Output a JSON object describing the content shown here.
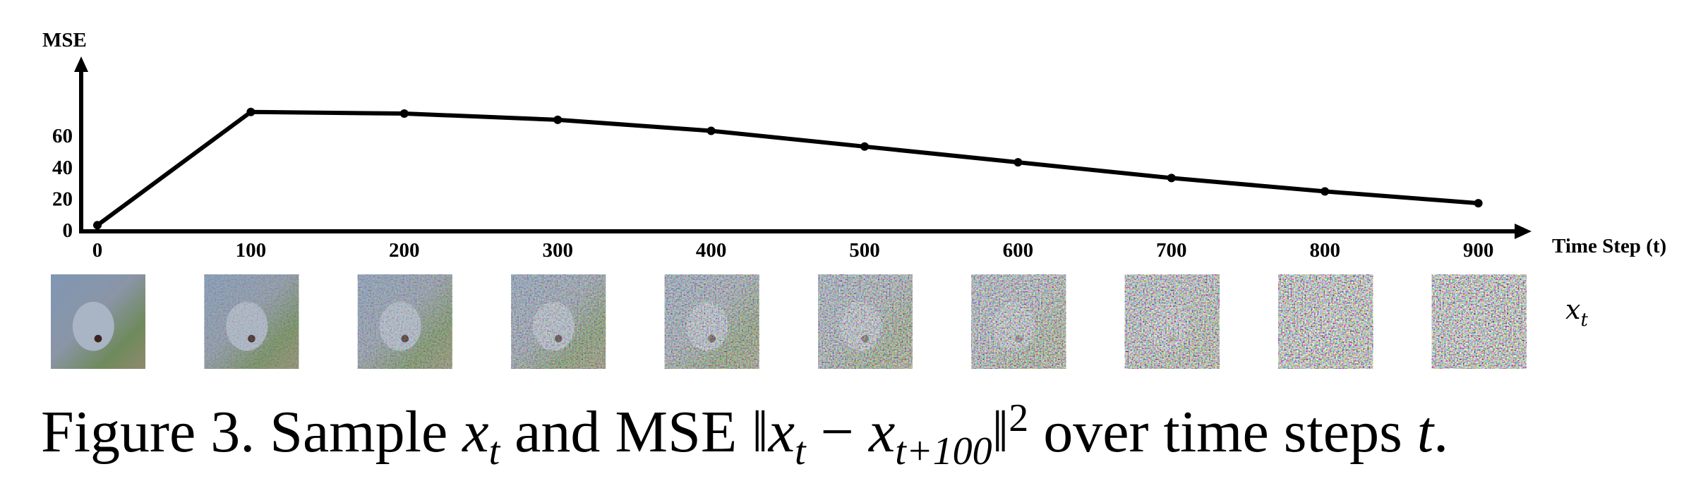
{
  "chart_data": {
    "type": "line",
    "ylabel": "MSE",
    "xlabel": "Time Step (t)",
    "x": [
      0,
      100,
      200,
      300,
      400,
      500,
      600,
      700,
      800,
      900
    ],
    "series": [
      {
        "values": [
          3,
          75,
          74,
          70,
          63,
          53,
          43,
          33,
          24.5,
          17
        ]
      }
    ],
    "x_tick_labels": [
      "0",
      "100",
      "200",
      "300",
      "400",
      "500",
      "600",
      "700",
      "800",
      "900"
    ],
    "y_ticks": [
      0,
      20,
      40,
      60
    ],
    "y_tick_labels": [
      "0",
      "20",
      "40",
      "60"
    ],
    "ylim": [
      0,
      75
    ],
    "grid": false,
    "line_color": "#000000",
    "image_row_label": "x_t",
    "sample_images": [
      "fox-noisy-t0",
      "fox-noisy-t100",
      "fox-noisy-t200",
      "fox-noisy-t300",
      "fox-noisy-t400",
      "fox-noisy-t500",
      "fox-noisy-t600",
      "fox-noisy-t700",
      "fox-noisy-t800",
      "fox-noisy-t900"
    ]
  },
  "caption": {
    "prefix": "Figure 3. Sample ",
    "xt_base": "x",
    "xt_sub": "t",
    "middle": " and MSE ",
    "norm_open": "‖",
    "norm_x1": "x",
    "norm_sub1": "t",
    "minus": " − ",
    "norm_x2": "x",
    "norm_sub2": "t+100",
    "norm_close": "‖",
    "norm_pow": "2",
    "suffix": " over time steps ",
    "t_var": "t",
    "period": "."
  }
}
